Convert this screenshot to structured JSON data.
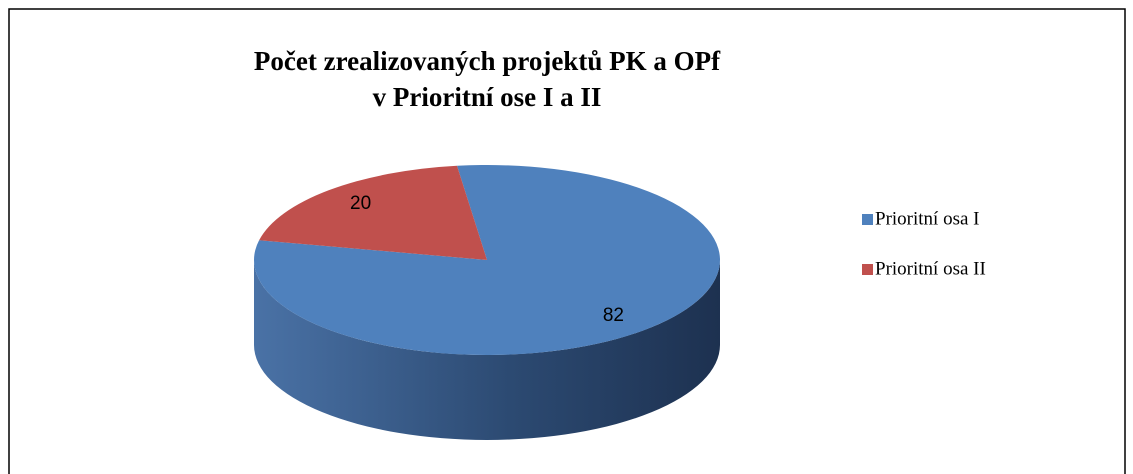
{
  "chart_data": {
    "type": "pie3d",
    "title": [
      "Počet zrealizovaných projektů PK a OPf",
      "v Prioritní ose I a II"
    ],
    "categories": [
      "Prioritní osa I",
      "Prioritní osa II"
    ],
    "values": [
      82,
      20
    ],
    "colors": [
      "#4f81bd",
      "#c0504d"
    ],
    "legend": "right"
  }
}
